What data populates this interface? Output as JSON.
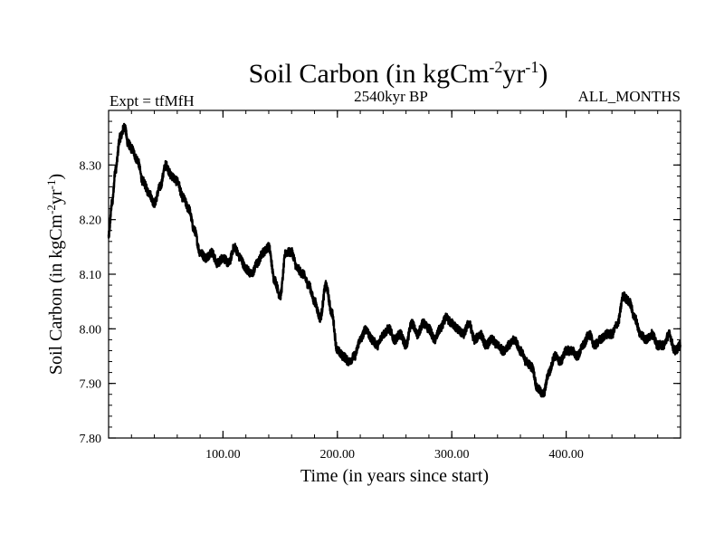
{
  "chart_data": {
    "type": "line",
    "title_main": "Soil Carbon (in kgCm",
    "title_sup1": "-2",
    "title_mid": "yr",
    "title_sup2": "-1",
    "title_end": ")",
    "subtitle_left": "Expt = tfMfH",
    "subtitle_center": "2540kyr BP",
    "subtitle_right": "ALL_MONTHS",
    "xlabel": "Time (in years since start)",
    "ylabel_main": "Soil Carbon (in kgCm",
    "ylabel_sup1": "-2",
    "ylabel_mid": "yr",
    "ylabel_sup2": "-1",
    "ylabel_end": ")",
    "xlim": [
      0,
      500
    ],
    "ylim": [
      7.8,
      8.4
    ],
    "xticks": [
      100,
      200,
      300,
      400
    ],
    "xtick_labels": [
      "100.00",
      "200.00",
      "300.00",
      "400.00"
    ],
    "yticks": [
      7.8,
      7.9,
      8.0,
      8.1,
      8.2,
      8.3
    ],
    "ytick_labels": [
      "7.80",
      "7.90",
      "8.00",
      "8.10",
      "8.20",
      "8.30"
    ],
    "grid": false,
    "line_color": "#000000",
    "series": [
      {
        "name": "Soil Carbon",
        "x": [
          0,
          3,
          6,
          10,
          14,
          17,
          20,
          25,
          30,
          35,
          40,
          45,
          50,
          55,
          60,
          65,
          70,
          75,
          80,
          85,
          90,
          95,
          100,
          105,
          110,
          115,
          120,
          125,
          130,
          135,
          140,
          145,
          150,
          155,
          160,
          165,
          170,
          175,
          180,
          185,
          190,
          195,
          200,
          205,
          210,
          215,
          220,
          225,
          230,
          235,
          240,
          245,
          250,
          255,
          260,
          265,
          270,
          275,
          280,
          285,
          290,
          295,
          300,
          305,
          310,
          315,
          320,
          325,
          330,
          335,
          340,
          345,
          350,
          355,
          360,
          365,
          370,
          375,
          380,
          385,
          390,
          395,
          400,
          405,
          410,
          415,
          420,
          425,
          430,
          435,
          440,
          445,
          450,
          455,
          460,
          465,
          470,
          475,
          480,
          485,
          490,
          495,
          500
        ],
        "values": [
          8.17,
          8.23,
          8.29,
          8.35,
          8.37,
          8.34,
          8.33,
          8.31,
          8.27,
          8.25,
          8.23,
          8.26,
          8.3,
          8.28,
          8.27,
          8.24,
          8.22,
          8.18,
          8.14,
          8.13,
          8.14,
          8.12,
          8.13,
          8.12,
          8.15,
          8.13,
          8.11,
          8.1,
          8.12,
          8.14,
          8.15,
          8.09,
          8.06,
          8.14,
          8.14,
          8.11,
          8.1,
          8.08,
          8.05,
          8.02,
          8.08,
          8.03,
          7.96,
          7.95,
          7.94,
          7.95,
          7.98,
          8.0,
          7.98,
          7.97,
          7.99,
          8.0,
          7.98,
          7.99,
          7.97,
          8.01,
          7.99,
          8.01,
          8.0,
          7.98,
          8.0,
          8.02,
          8.01,
          8.0,
          7.99,
          8.01,
          7.98,
          7.99,
          7.97,
          7.98,
          7.97,
          7.96,
          7.97,
          7.98,
          7.96,
          7.94,
          7.93,
          7.89,
          7.88,
          7.92,
          7.95,
          7.94,
          7.96,
          7.96,
          7.95,
          7.97,
          7.99,
          7.97,
          7.98,
          7.99,
          7.99,
          8.01,
          8.06,
          8.05,
          8.02,
          7.99,
          7.98,
          7.99,
          7.97,
          7.97,
          7.99,
          7.96,
          7.97
        ]
      }
    ]
  }
}
